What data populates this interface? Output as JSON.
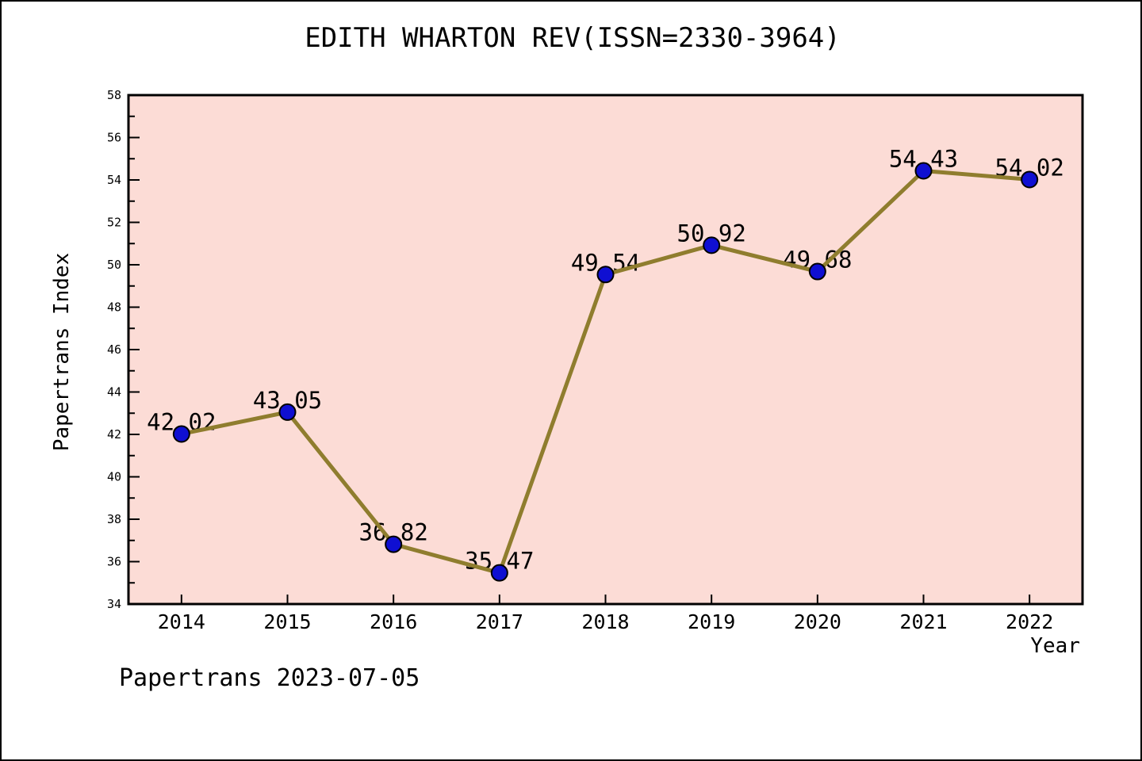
{
  "footer": {
    "text": "Papertrans 2023-07-05"
  },
  "chart_data": {
    "type": "line",
    "title": "EDITH WHARTON REV(ISSN=2330-3964)",
    "xlabel": "Year",
    "ylabel": "Papertrans Index",
    "x": [
      2014,
      2015,
      2016,
      2017,
      2018,
      2019,
      2020,
      2021,
      2022
    ],
    "values": [
      42.02,
      43.05,
      36.82,
      35.47,
      49.54,
      50.92,
      49.68,
      54.43,
      54.02
    ],
    "point_labels": [
      "42.02",
      "43.05",
      "36.82",
      "35.47",
      "49.54",
      "50.92",
      "49.68",
      "54.43",
      "54.02"
    ],
    "xlim": [
      2013.5,
      2022.5
    ],
    "ylim": [
      34,
      58
    ],
    "x_ticks": [
      2014,
      2015,
      2016,
      2017,
      2018,
      2019,
      2020,
      2021,
      2022
    ],
    "y_ticks": [
      34,
      36,
      38,
      40,
      42,
      44,
      46,
      48,
      50,
      52,
      54,
      56,
      58
    ],
    "y_minor_ticks": [
      35,
      37,
      39,
      41,
      43,
      45,
      47,
      49,
      51,
      53,
      55,
      57
    ],
    "grid": false,
    "legend": null,
    "colors": {
      "page_background": "#ffffff",
      "plot_background": "#fcdcd6",
      "line": "#8f7d2e",
      "marker_fill": "#0f0fd2",
      "marker_edge": "#000000",
      "axis": "#000000",
      "text": "#000000"
    }
  }
}
